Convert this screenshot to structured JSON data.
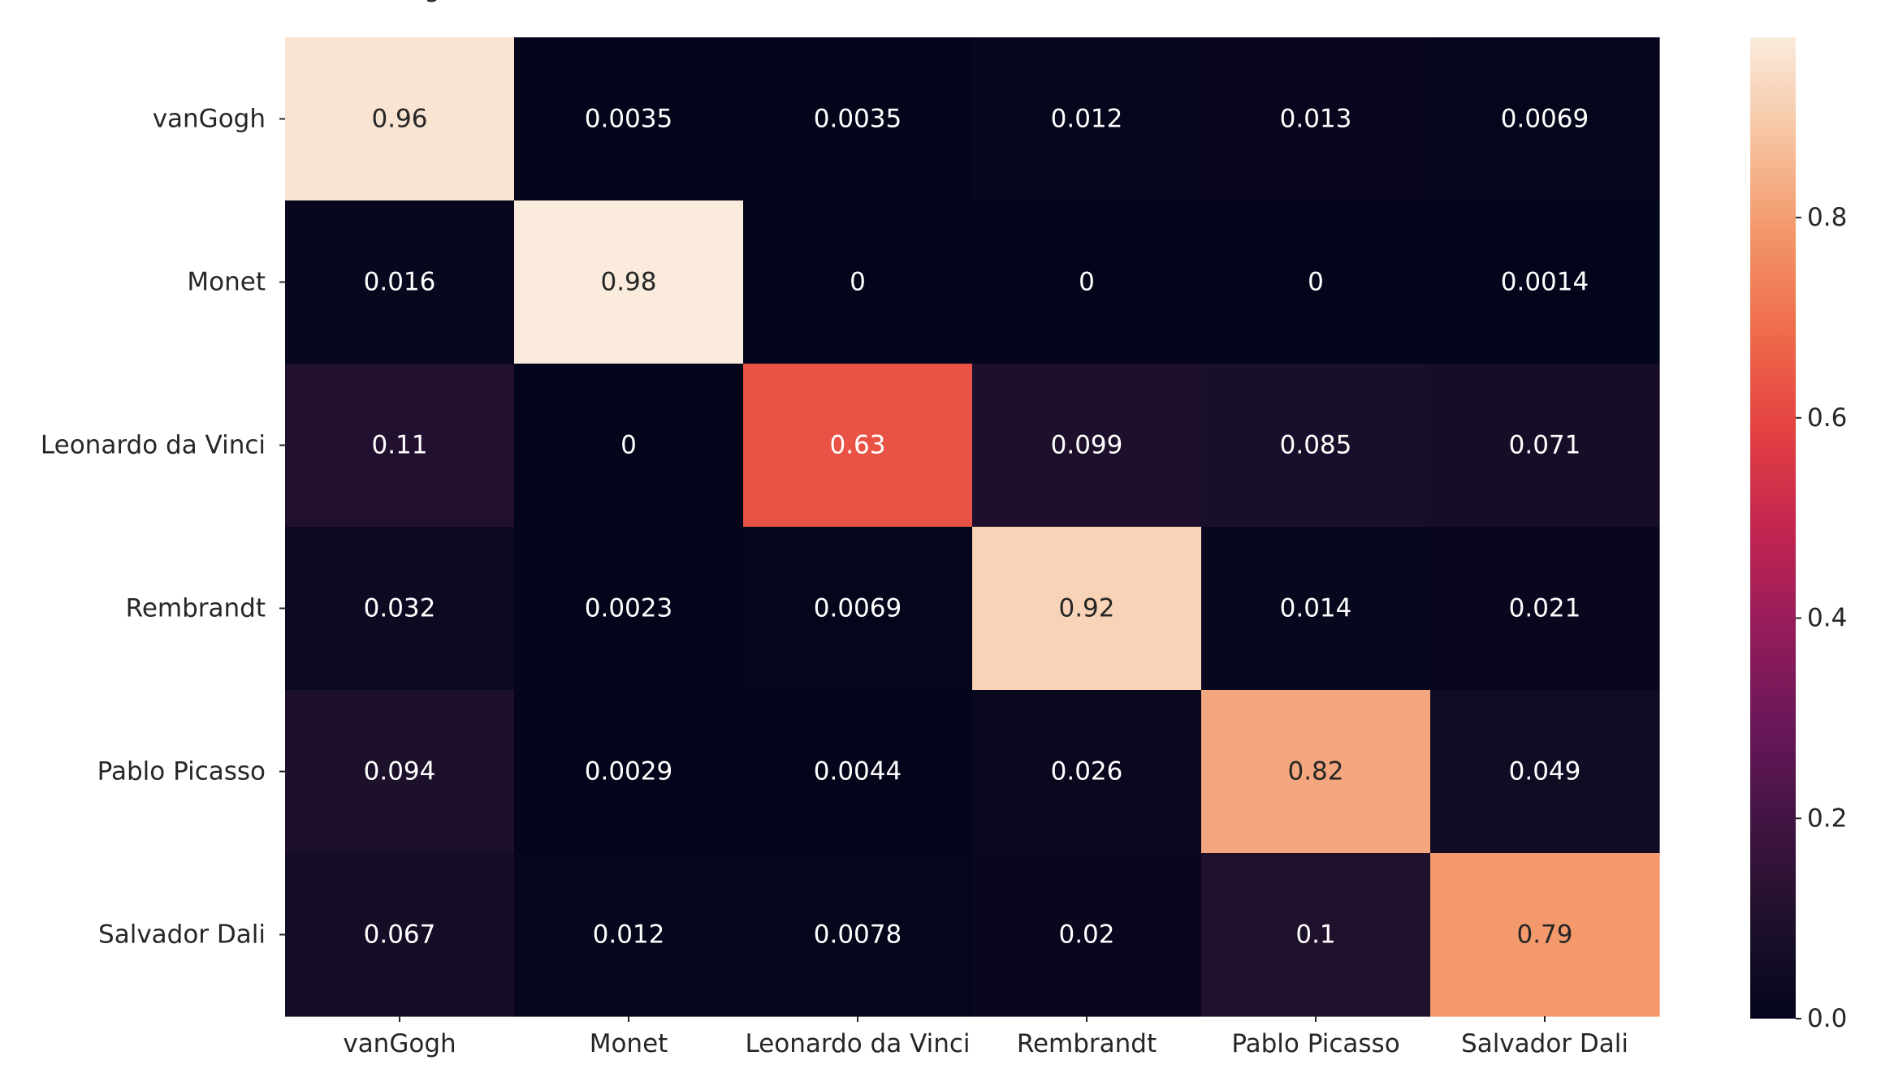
{
  "chart_data": {
    "type": "heatmap",
    "title": "",
    "xlabel": "",
    "ylabel": "",
    "x_categories": [
      "vanGogh",
      "Monet",
      "Leonardo da Vinci",
      "Rembrandt",
      "Pablo Picasso",
      "Salvador Dali"
    ],
    "y_categories": [
      "vanGogh",
      "Monet",
      "Leonardo da Vinci",
      "Rembrandt",
      "Pablo Picasso",
      "Salvador Dali"
    ],
    "top_axis_tick_labels": [
      "vanGogh",
      "Monet",
      "Leonardo da Vinci",
      "Rembrandt",
      "Pablo Picasso",
      "Salvador Dali"
    ],
    "values": [
      [
        0.96,
        0.0035,
        0.0035,
        0.012,
        0.013,
        0.0069
      ],
      [
        0.016,
        0.98,
        0,
        0,
        0,
        0.0014
      ],
      [
        0.11,
        0,
        0.63,
        0.099,
        0.085,
        0.071
      ],
      [
        0.032,
        0.0023,
        0.0069,
        0.92,
        0.014,
        0.021
      ],
      [
        0.094,
        0.0029,
        0.0044,
        0.026,
        0.82,
        0.049
      ],
      [
        0.067,
        0.012,
        0.0078,
        0.02,
        0.1,
        0.79
      ]
    ],
    "cell_labels": [
      [
        "0.96",
        "0.0035",
        "0.0035",
        "0.012",
        "0.013",
        "0.0069"
      ],
      [
        "0.016",
        "0.98",
        "0",
        "0",
        "0",
        "0.0014"
      ],
      [
        "0.11",
        "0",
        "0.63",
        "0.099",
        "0.085",
        "0.071"
      ],
      [
        "0.032",
        "0.0023",
        "0.0069",
        "0.92",
        "0.014",
        "0.021"
      ],
      [
        "0.094",
        "0.0029",
        "0.0044",
        "0.026",
        "0.82",
        "0.049"
      ],
      [
        "0.067",
        "0.012",
        "0.0078",
        "0.02",
        "0.1",
        "0.79"
      ]
    ],
    "colorbar": {
      "range": [
        0,
        0.98
      ],
      "ticks": [
        0.0,
        0.2,
        0.4,
        0.6,
        0.8
      ],
      "tick_labels": [
        "0.0",
        "0.2",
        "0.4",
        "0.6",
        "0.8"
      ],
      "colormap": "rocket",
      "placement": "right"
    },
    "grid": false,
    "legend": "none",
    "colors": {
      "low_color": "#03051a",
      "high_color": "#faebdd",
      "dark_text": "#262626",
      "light_text": "#ffffff"
    }
  }
}
